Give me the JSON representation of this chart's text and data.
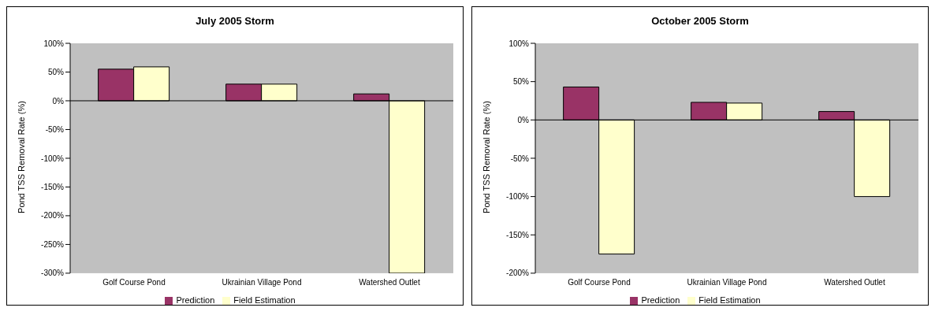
{
  "chart_data": [
    {
      "type": "bar",
      "title": "July 2005 Storm",
      "ylabel": "Pond TSS Removal Rate (%)",
      "categories": [
        "Golf Course Pond",
        "Ukrainian Village Pond",
        "Watershed Outlet"
      ],
      "series": [
        {
          "name": "Prediction",
          "color": "#993366",
          "values": [
            55,
            29,
            12
          ]
        },
        {
          "name": "Field Estimation",
          "color": "#ffffcc",
          "values": [
            59,
            29,
            -300
          ]
        }
      ],
      "ylim": [
        -300,
        100
      ],
      "yticks": [
        {
          "value": -300,
          "label": "-300%"
        },
        {
          "value": -250,
          "label": "-250%"
        },
        {
          "value": -200,
          "label": "-200%"
        },
        {
          "value": -150,
          "label": "-150%"
        },
        {
          "value": -100,
          "label": "-100%"
        },
        {
          "value": -50,
          "label": "-50%"
        },
        {
          "value": 0,
          "label": "0%"
        },
        {
          "value": 50,
          "label": "50%"
        },
        {
          "value": 100,
          "label": "100%"
        }
      ],
      "grid": false,
      "legend": "bottom",
      "ref_lines": [
        {
          "axis": "y",
          "value": 0,
          "color": "#000000"
        }
      ]
    },
    {
      "type": "bar",
      "title": "October 2005 Storm",
      "ylabel": "Pond TSS Removal Rate (%)",
      "categories": [
        "Golf Course Pond",
        "Ukrainian Village Pond",
        "Watershed Outlet"
      ],
      "series": [
        {
          "name": "Prediction",
          "color": "#993366",
          "values": [
            43,
            23,
            11
          ]
        },
        {
          "name": "Field Estimation",
          "color": "#ffffcc",
          "values": [
            -175,
            22,
            -100
          ]
        }
      ],
      "ylim": [
        -200,
        100
      ],
      "yticks": [
        {
          "value": -200,
          "label": "-200%"
        },
        {
          "value": -150,
          "label": "-150%"
        },
        {
          "value": -100,
          "label": "-100%"
        },
        {
          "value": -50,
          "label": "-50%"
        },
        {
          "value": 0,
          "label": "0%"
        },
        {
          "value": 50,
          "label": "50%"
        },
        {
          "value": 100,
          "label": "100%"
        }
      ],
      "grid": false,
      "legend": "bottom",
      "ref_lines": [
        {
          "axis": "y",
          "value": 0,
          "color": "#000000"
        }
      ]
    }
  ]
}
